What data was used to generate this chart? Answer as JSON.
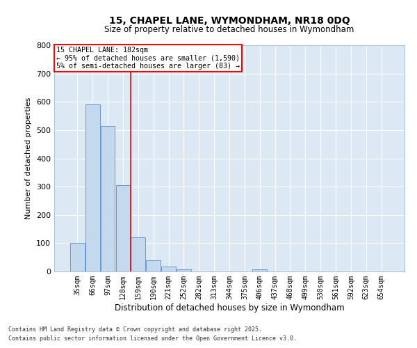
{
  "title_line1": "15, CHAPEL LANE, WYMONDHAM, NR18 0DQ",
  "title_line2": "Size of property relative to detached houses in Wymondham",
  "xlabel": "Distribution of detached houses by size in Wymondham",
  "ylabel": "Number of detached properties",
  "bar_color": "#c5d9ee",
  "bar_edge_color": "#6699cc",
  "bg_color": "#dce9f5",
  "grid_color": "#ffffff",
  "categories": [
    "35sqm",
    "66sqm",
    "97sqm",
    "128sqm",
    "159sqm",
    "190sqm",
    "221sqm",
    "252sqm",
    "282sqm",
    "313sqm",
    "344sqm",
    "375sqm",
    "406sqm",
    "437sqm",
    "468sqm",
    "499sqm",
    "530sqm",
    "561sqm",
    "592sqm",
    "623sqm",
    "654sqm"
  ],
  "values": [
    101,
    590,
    515,
    305,
    120,
    40,
    17,
    8,
    0,
    0,
    0,
    0,
    8,
    0,
    0,
    0,
    0,
    0,
    0,
    0,
    0
  ],
  "ylim": [
    0,
    800
  ],
  "yticks": [
    0,
    100,
    200,
    300,
    400,
    500,
    600,
    700,
    800
  ],
  "annotation_title": "15 CHAPEL LANE: 182sqm",
  "annotation_line2": "← 95% of detached houses are smaller (1,590)",
  "annotation_line3": "5% of semi-detached houses are larger (83) →",
  "vline_x": 3.5,
  "footnote_line1": "Contains HM Land Registry data © Crown copyright and database right 2025.",
  "footnote_line2": "Contains public sector information licensed under the Open Government Licence v3.0."
}
